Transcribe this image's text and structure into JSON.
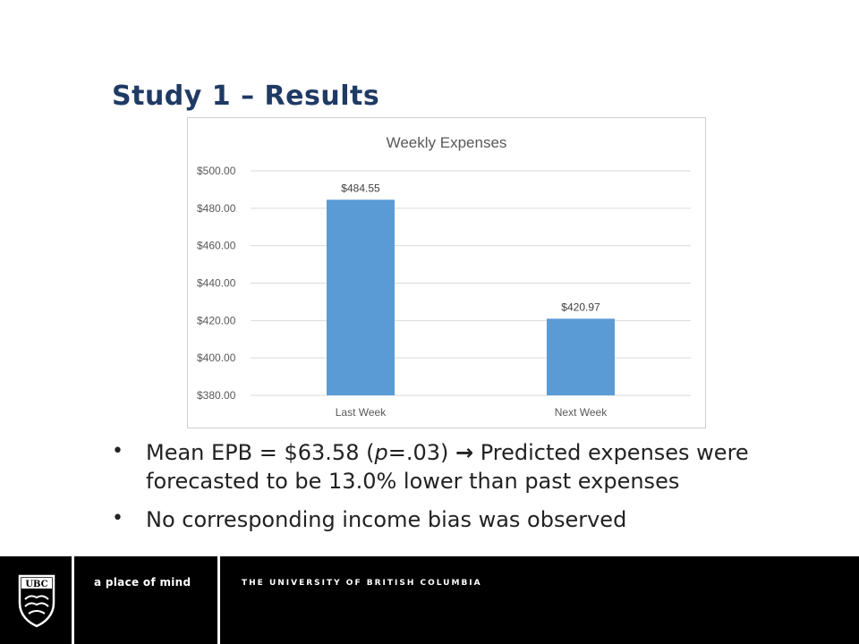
{
  "title": "Study 1 – Results",
  "chart_data": {
    "type": "bar",
    "title": "Weekly Expenses",
    "categories": [
      "Last Week",
      "Next Week"
    ],
    "values": [
      484.55,
      420.97
    ],
    "data_labels": [
      "$484.55",
      "$420.97"
    ],
    "ylim": [
      380,
      500
    ],
    "yticks": [
      380,
      400,
      420,
      440,
      460,
      480,
      500
    ],
    "ytick_labels": [
      "$380.00",
      "$400.00",
      "$420.00",
      "$440.00",
      "$460.00",
      "$480.00",
      "$500.00"
    ],
    "xlabel": "",
    "ylabel": "",
    "grid": true,
    "bar_color": "#5b9bd5"
  },
  "bullets": {
    "b1_prefix": "Mean EPB = $63.58 (",
    "b1_p": "p",
    "b1_mid": "=.03) ",
    "b1_arrow": "→",
    "b1_suffix": " Predicted expenses were forecasted to be 13.0% lower than past expenses",
    "b2": "No corresponding income bias was observed"
  },
  "footer": {
    "logo_text": "UBC",
    "tagline": "a place of mind",
    "university": "THE UNIVERSITY OF BRITISH COLUMBIA"
  }
}
